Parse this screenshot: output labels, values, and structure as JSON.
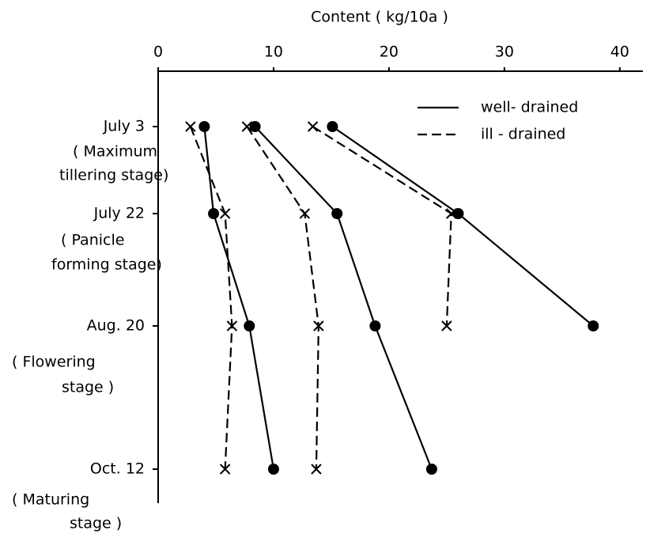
{
  "chart_data": {
    "type": "line",
    "title": "Content   ( kg/10a )",
    "categories": [
      "July 3",
      "July 22",
      "Aug. 20",
      "Oct. 12"
    ],
    "stages": [
      [
        "( Maximum",
        "tillering stage)"
      ],
      [
        "( Panicle",
        "forming stage)"
      ],
      [
        "( Flowering",
        "stage )"
      ],
      [
        "( Maturing",
        "stage )"
      ]
    ],
    "xlim": [
      0,
      42
    ],
    "xticks": [
      0,
      10,
      20,
      30,
      40
    ],
    "series": [
      {
        "name": "well- drained",
        "style": "solid",
        "marker": "dot",
        "color": "#000000",
        "values": [
          4.0,
          4.8,
          7.9,
          10.0
        ]
      },
      {
        "name": "well- drained",
        "style": "solid",
        "marker": "dot",
        "color": "#000000",
        "values": [
          8.4,
          15.5,
          18.8,
          23.7
        ]
      },
      {
        "name": "well- drained",
        "style": "solid",
        "marker": "dot",
        "color": "#000000",
        "values": [
          15.1,
          26.0,
          37.7,
          null
        ]
      },
      {
        "name": "ill - drained",
        "style": "dashed",
        "marker": "x",
        "color": "#000000",
        "values": [
          2.8,
          5.8,
          6.4,
          5.8
        ]
      },
      {
        "name": "ill - drained",
        "style": "dashed",
        "marker": "x",
        "color": "#000000",
        "values": [
          7.7,
          12.7,
          13.9,
          13.7
        ]
      },
      {
        "name": "ill - drained",
        "style": "dashed",
        "marker": "x",
        "color": "#000000",
        "values": [
          13.4,
          25.4,
          25.0,
          null
        ]
      }
    ]
  }
}
